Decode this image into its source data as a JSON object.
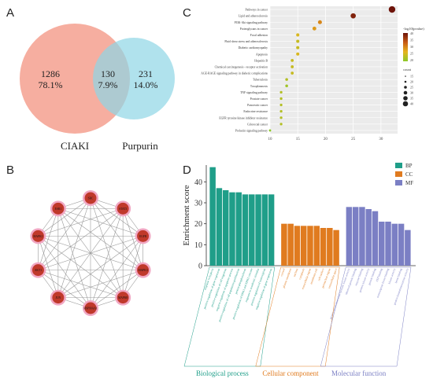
{
  "panels": {
    "a": "A",
    "b": "B",
    "c": "C",
    "d": "D"
  },
  "venn": {
    "left": {
      "label": "CIAKI",
      "count": "1286",
      "pct": "78.1%",
      "color": "#f4a08f"
    },
    "right": {
      "label": "Purpurin",
      "count": "231",
      "pct": "14.0%",
      "color": "#8fd6e6"
    },
    "overlap": {
      "count": "130",
      "pct": "7.9%"
    }
  },
  "network": {
    "nodes": [
      "SRC",
      "STAT3",
      "EGFR",
      "MAPK3",
      "MAPK8",
      "HSP90AA1",
      "JUN",
      "AKT1",
      "MAPK1",
      "ESR1"
    ],
    "node_color": "#c0392b",
    "halo_color": "#f1a7c3"
  },
  "chart_data": [
    {
      "type": "scatter",
      "panel": "C",
      "categories": [
        "Pathways in cancer",
        "Lipid and atherosclerosis",
        "PI3K-Akt signaling pathway",
        "Proteoglycans in cancer",
        "Focal adhesion",
        "Fluid shear stress and atherosclerosis",
        "Diabetic cardiomyopathy",
        "Apoptosis",
        "Hepatitis B",
        "Chemical carcinogenesis - receptor activation",
        "AGE-RAGE signaling pathway in diabetic complications",
        "Tuberculosis",
        "Toxoplasmosis",
        "TNF signaling pathway",
        "Prostate cancer",
        "Pancreatic cancer",
        "Endocrine resistance",
        "EGFR tyrosine kinase inhibitor resistance",
        "Colorectal cancer",
        "Prolactin signaling pathway"
      ],
      "x": [
        32,
        25,
        19,
        18,
        15,
        15,
        15,
        15,
        14,
        14,
        14,
        13,
        13,
        12,
        12,
        12,
        12,
        12,
        12,
        10
      ],
      "neglog10p": [
        40,
        38,
        26,
        24,
        20,
        18,
        18,
        20,
        18,
        18,
        18,
        16,
        14,
        16,
        16,
        16,
        16,
        16,
        16,
        12
      ],
      "xticks": [
        "10",
        "15",
        "20",
        "25",
        "30"
      ],
      "xlim": [
        10,
        33
      ],
      "legend_color_title": "-log10(pvalue)",
      "legend_color_ticks": [
        "40",
        "35",
        "30",
        "25",
        "20"
      ],
      "legend_size_title": "count",
      "legend_size_ticks": [
        "15",
        "20",
        "25",
        "30",
        "35",
        "40"
      ],
      "grid": true,
      "legend_position": "right"
    },
    {
      "type": "bar",
      "panel": "D",
      "ylabel": "Enrichment score",
      "ylim": [
        0,
        48
      ],
      "yticks": [
        "0",
        "10",
        "20",
        "30",
        "40"
      ],
      "legend": [
        {
          "name": "BP",
          "color": "#1f9e89"
        },
        {
          "name": "CC",
          "color": "#e07b1f"
        },
        {
          "name": "MF",
          "color": "#7b7fc4"
        }
      ],
      "groups": [
        {
          "name": "Biological process",
          "series": "BP",
          "color": "#1f9e89",
          "categories": [
            "response to hypoxia",
            "positive regulation of gene expression",
            "positive regulation of cell migration",
            "negative regulation of apoptotic process",
            "positive regulation of cell population proliferation",
            "protein phosphorylation",
            "positive regulation of ERK1 and ERK2 cascade",
            "response to xenobiotic stimulus",
            "positive regulation of transcription",
            "negative regulation of gene expression"
          ],
          "values": [
            47,
            37,
            36,
            35,
            35,
            34,
            34,
            34,
            34,
            34
          ]
        },
        {
          "name": "Cellular component",
          "series": "CC",
          "color": "#e07b1f",
          "categories": [
            "cytosol",
            "plasma membrane",
            "nucleus",
            "cytoplasm",
            "extracellular region",
            "membrane raft",
            "cell surface",
            "perinuclear region",
            "extracellular space"
          ],
          "values": [
            20,
            20,
            19,
            19,
            19,
            19,
            18,
            18,
            17
          ]
        },
        {
          "name": "Molecular function",
          "series": "MF",
          "color": "#7b7fc4",
          "categories": [
            "protein serine/threonine/tyrosine kinase activity",
            "identical protein binding",
            "enzyme binding",
            "protein kinase activity",
            "protein binding",
            "ATP binding",
            "transcription factor binding",
            "kinase activity",
            "heme binding",
            "protein homodimerization activity"
          ],
          "values": [
            28,
            28,
            28,
            27,
            26,
            21,
            21,
            20,
            20,
            17
          ]
        }
      ]
    }
  ]
}
